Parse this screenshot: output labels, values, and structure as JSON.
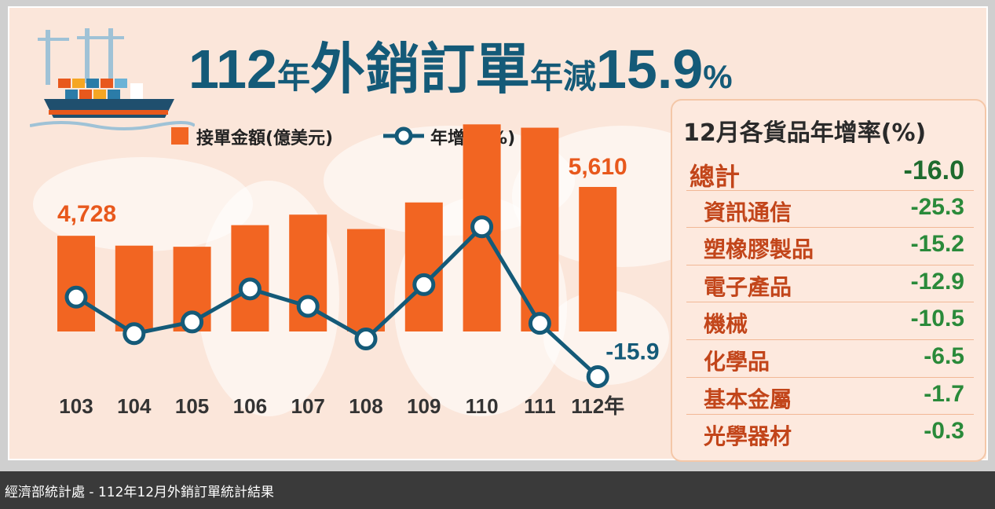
{
  "headline": {
    "year": "112",
    "year_unit": "年",
    "subject": "外銷訂單",
    "change_text": "年減",
    "change_value": "15.9",
    "percent": "%"
  },
  "legend": {
    "bar_label": "接單金額(億美元)",
    "line_label": "年增率(%)"
  },
  "colors": {
    "bar": "#f26522",
    "line": "#145a78",
    "headline": "#145a78",
    "positive_text": "#2a8a3a",
    "category_text": "#c2451a",
    "label_orange": "#e8581c"
  },
  "chart_data": {
    "type": "bar",
    "categories": [
      "103",
      "104",
      "105",
      "106",
      "107",
      "108",
      "109",
      "110",
      "111",
      "112年"
    ],
    "series": [
      {
        "name": "接單金額(億美元)",
        "type": "bar",
        "values": [
          4728,
          4550,
          4530,
          4920,
          5110,
          4850,
          5330,
          6740,
          6680,
          5610
        ]
      },
      {
        "name": "年增率(%)",
        "type": "line",
        "values": [
          6.5,
          -3.8,
          -0.5,
          8.8,
          3.9,
          -5.3,
          10.0,
          26.3,
          -0.9,
          -15.9
        ]
      }
    ],
    "data_labels": [
      {
        "category": "103",
        "series": "接單金額(億美元)",
        "text": "4,728"
      },
      {
        "category": "112年",
        "series": "接單金額(億美元)",
        "text": "5,610"
      },
      {
        "category": "112年",
        "series": "年增率(%)",
        "text": "-15.9"
      }
    ],
    "legend_position": "top"
  },
  "table": {
    "title": "12月各貨品年增率(%)",
    "rows": [
      {
        "name": "總計",
        "value": "-16.0",
        "total": true
      },
      {
        "name": "資訊通信",
        "value": "-25.3"
      },
      {
        "name": "塑橡膠製品",
        "value": "-15.2"
      },
      {
        "name": "電子產品",
        "value": "-12.9"
      },
      {
        "name": "機械",
        "value": "-10.5"
      },
      {
        "name": "化學品",
        "value": "-6.5"
      },
      {
        "name": "基本金屬",
        "value": "-1.7"
      },
      {
        "name": "光學器材",
        "value": "-0.3"
      }
    ]
  },
  "caption": "經濟部統計處 - 112年12月外銷訂單統計結果"
}
